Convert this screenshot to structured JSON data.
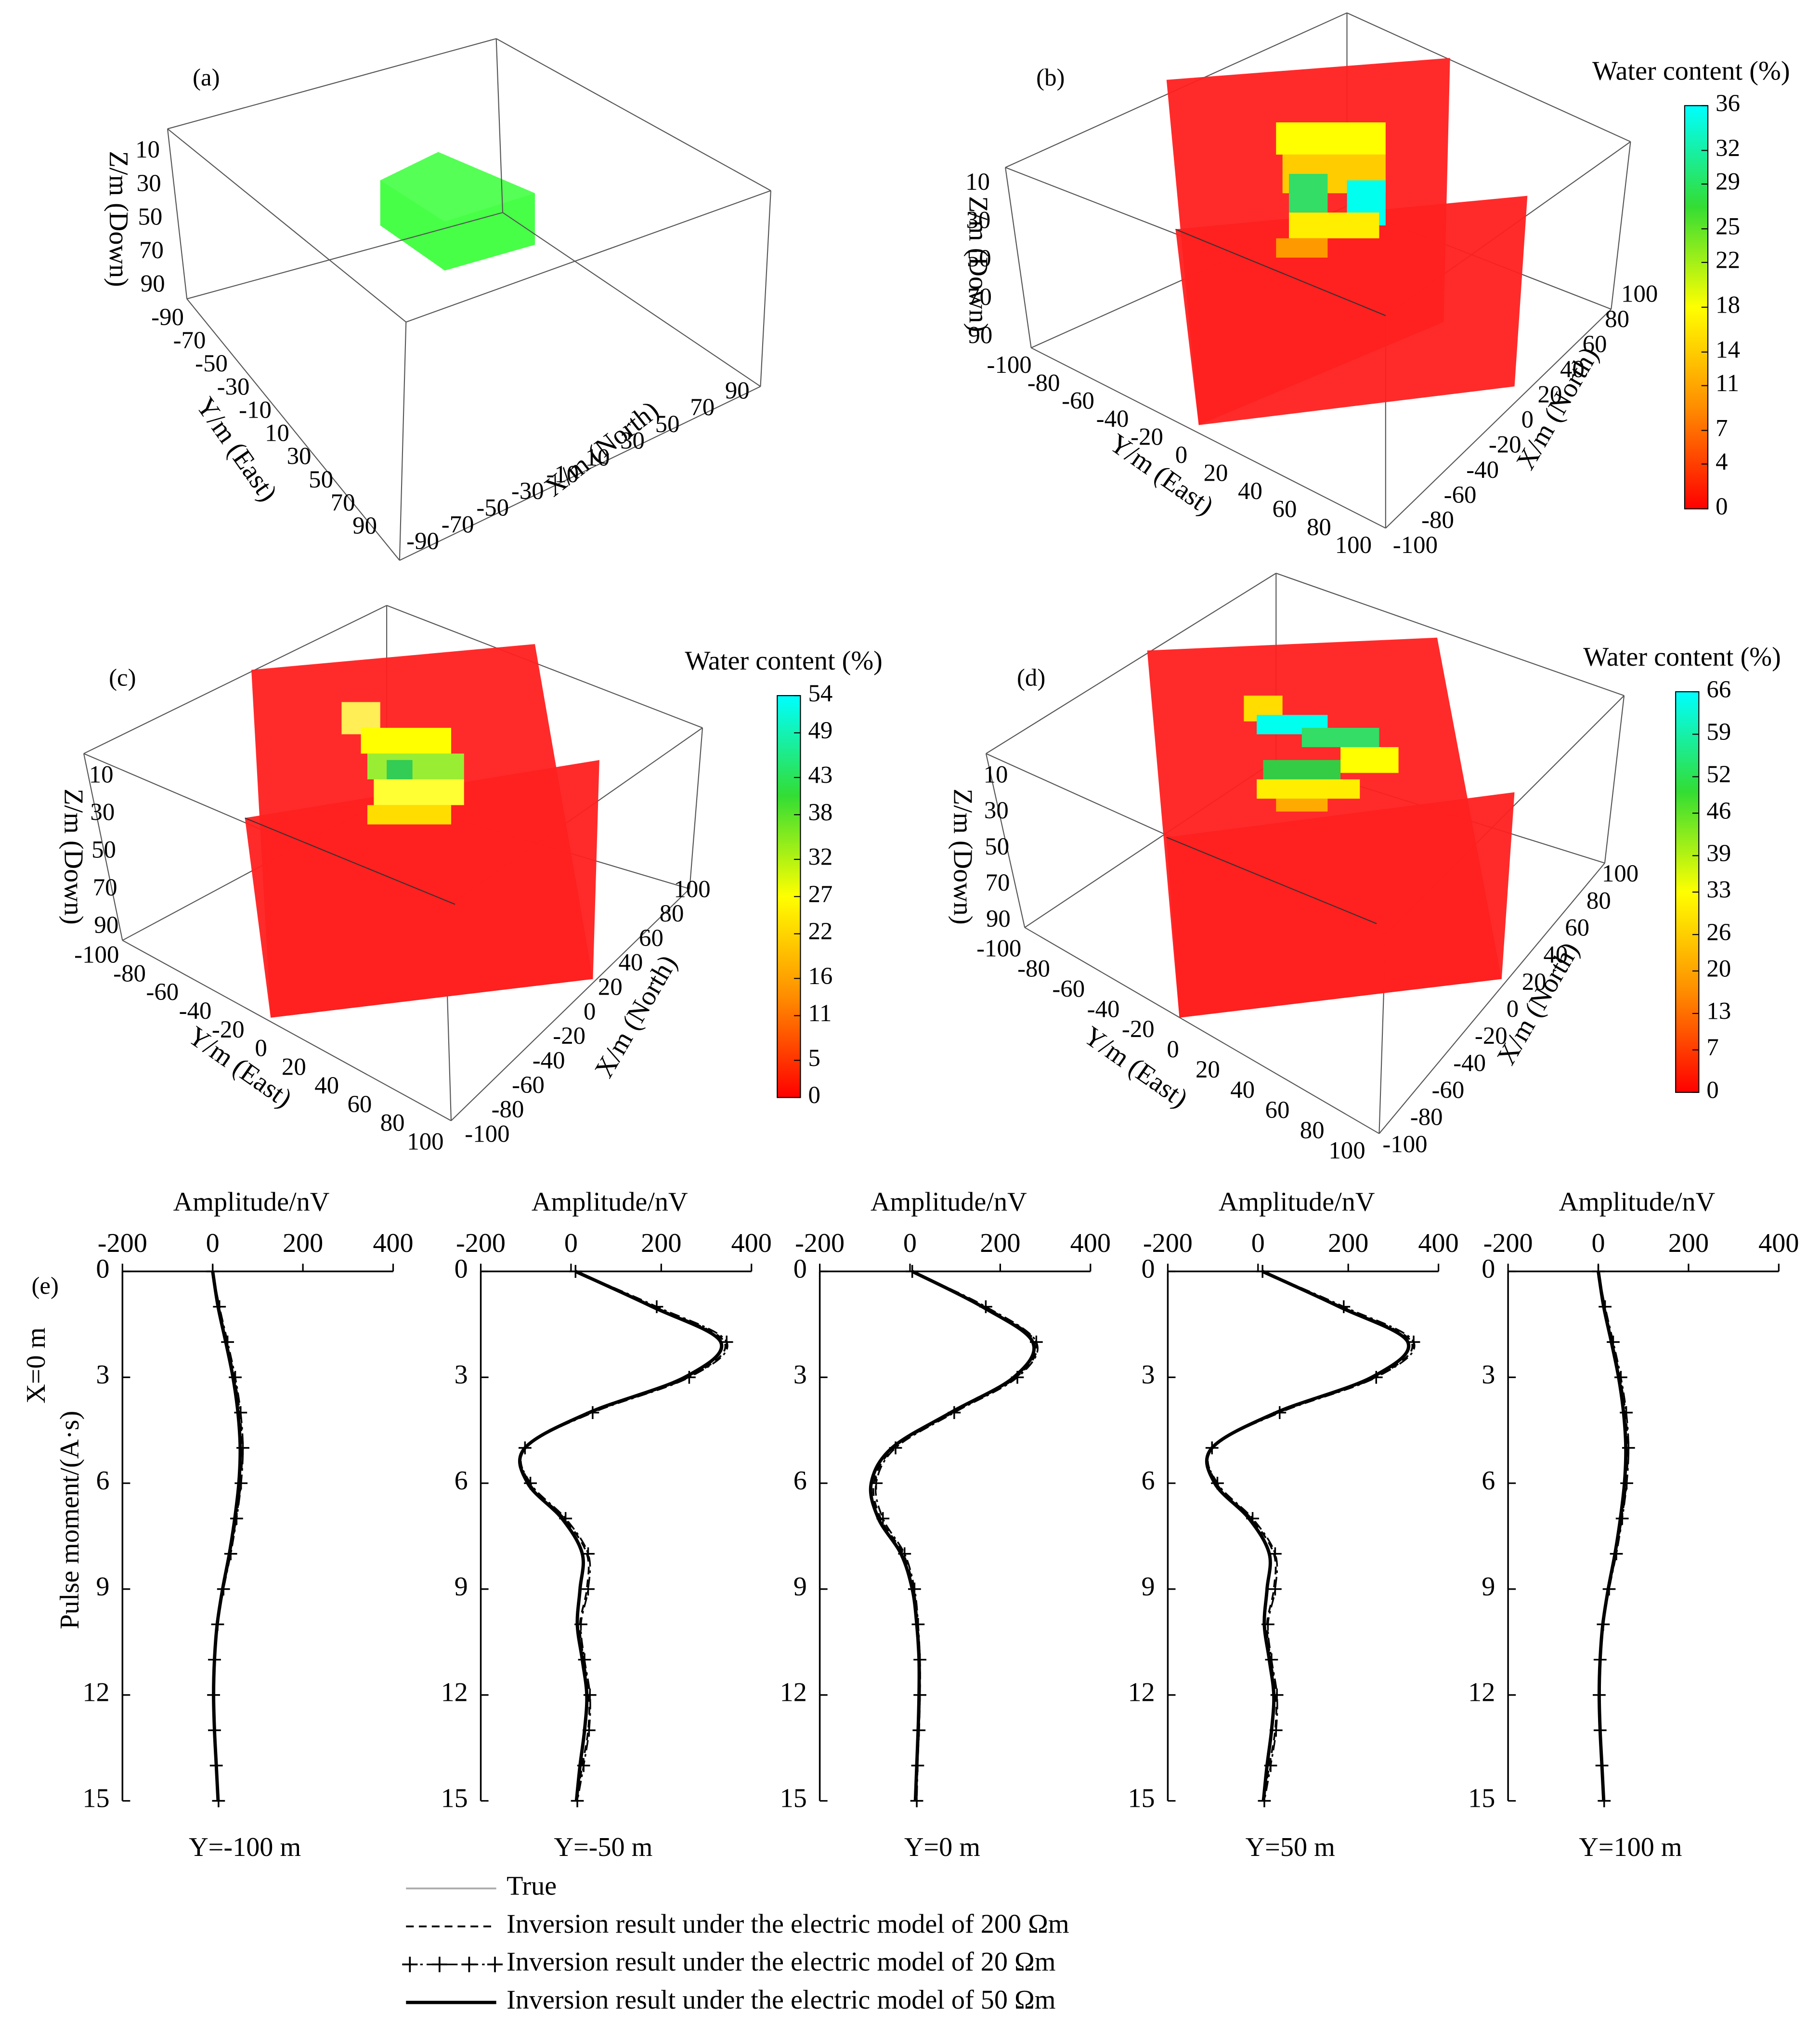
{
  "panels_3d": [
    {
      "label": "(a)",
      "z_title": "Z/m (Down)",
      "y_title": "Y/m (East)",
      "x_title": "X/m (North)",
      "zticks": [
        10,
        30,
        50,
        70,
        90
      ],
      "yticks": [
        -90,
        -70,
        -50,
        -30,
        -10,
        10,
        30,
        50,
        70,
        90
      ],
      "xticks": [
        -90,
        -70,
        -50,
        -30,
        -10,
        10,
        30,
        50,
        70,
        90
      ]
    },
    {
      "label": "(b)",
      "z_title": "Z/m (Down)",
      "y_title": "Y/m (East)",
      "x_title": "X/m (North)",
      "zticks": [
        10,
        30,
        50,
        70,
        90
      ],
      "yticks": [
        -100,
        -80,
        -60,
        -40,
        -20,
        0,
        20,
        40,
        60,
        80,
        100
      ],
      "xticks": [
        -100,
        -80,
        -60,
        -40,
        -20,
        0,
        20,
        40,
        60,
        80,
        100
      ],
      "colorbar": {
        "title": "Water content (%)",
        "lim": [
          0,
          36
        ],
        "ticks": [
          0,
          4,
          7,
          11,
          14,
          18,
          22,
          25,
          29,
          32,
          36
        ],
        "colors": [
          "#ff0000",
          "#ff8c00",
          "#ffff00",
          "#33dd33",
          "#00ffff"
        ]
      }
    },
    {
      "label": "(c)",
      "z_title": "Z/m (Down)",
      "y_title": "Y/m (East)",
      "x_title": "X/m (North)",
      "zticks": [
        10,
        30,
        50,
        70,
        90
      ],
      "yticks": [
        -100,
        -80,
        -60,
        -40,
        -20,
        0,
        20,
        40,
        60,
        80,
        100
      ],
      "xticks": [
        -100,
        -80,
        -60,
        -40,
        -20,
        0,
        20,
        40,
        60,
        80,
        100
      ],
      "colorbar": {
        "title": "Water content (%)",
        "lim": [
          0,
          54
        ],
        "ticks": [
          0,
          5,
          11,
          16,
          22,
          27,
          32,
          38,
          43,
          49,
          54
        ],
        "colors": [
          "#ff0000",
          "#ff8c00",
          "#ffff00",
          "#33dd33",
          "#00ffff"
        ]
      }
    },
    {
      "label": "(d)",
      "z_title": "Z/m (Down)",
      "y_title": "Y/m (East)",
      "x_title": "X/m (North)",
      "zticks": [
        10,
        30,
        50,
        70,
        90
      ],
      "yticks": [
        -100,
        -80,
        -60,
        -40,
        -20,
        0,
        20,
        40,
        60,
        80,
        100
      ],
      "xticks": [
        -100,
        -80,
        -60,
        -40,
        -20,
        0,
        20,
        40,
        60,
        80,
        100
      ],
      "colorbar": {
        "title": "Water content (%)",
        "lim": [
          0,
          66
        ],
        "ticks": [
          0,
          7,
          13,
          20,
          26,
          33,
          39,
          46,
          52,
          59,
          66
        ],
        "colors": [
          "#ff0000",
          "#ff8c00",
          "#ffff00",
          "#33dd33",
          "#00ffff"
        ]
      }
    }
  ],
  "chart_data": [
    {
      "type": "line",
      "panel_label": "(e)",
      "annotation": "X=0 m",
      "y_label": "Pulse moment/(A·s)",
      "x_label": "Amplitude/nV",
      "caption": "Y=-100 m",
      "x": [
        0,
        1,
        2,
        3,
        4,
        5,
        6,
        7,
        8,
        9,
        10,
        11,
        12,
        13,
        14,
        15
      ],
      "xlim": [
        0,
        15
      ],
      "xticks": [
        0,
        3,
        6,
        9,
        12,
        15
      ],
      "ylim": [
        -200,
        400
      ],
      "yticks": [
        -200,
        0,
        200,
        400
      ],
      "series": [
        {
          "name": "True",
          "color": "#aaaaaa",
          "style": "solid",
          "values": [
            0,
            12,
            28,
            44,
            55,
            60,
            57,
            48,
            36,
            22,
            10,
            4,
            2,
            4,
            8,
            12
          ]
        },
        {
          "name": "Inversion result under the electric model of  200 Ωm",
          "color": "#000000",
          "style": "dashed",
          "values": [
            0,
            14,
            31,
            48,
            60,
            65,
            62,
            52,
            39,
            24,
            11,
            4,
            2,
            4,
            8,
            12
          ]
        },
        {
          "name": "Inversion result under the electric model of  20 Ωm",
          "color": "#000000",
          "style": "dashdot",
          "marker": "+",
          "values": [
            0,
            15,
            33,
            50,
            62,
            67,
            63,
            53,
            40,
            24,
            11,
            4,
            2,
            4,
            8,
            13
          ]
        },
        {
          "name": "Inversion result under the electric model of  50 Ωm",
          "color": "#000000",
          "style": "thick",
          "values": [
            0,
            12,
            29,
            45,
            56,
            61,
            58,
            49,
            37,
            22,
            10,
            4,
            2,
            4,
            8,
            12
          ]
        }
      ]
    },
    {
      "type": "line",
      "x_label": "Amplitude/nV",
      "caption": "Y=-50 m",
      "x": [
        0,
        1,
        2,
        3,
        4,
        5,
        6,
        7,
        8,
        9,
        10,
        11,
        12,
        13,
        14,
        15
      ],
      "xlim": [
        0,
        15
      ],
      "xticks": [
        0,
        3,
        6,
        9,
        12,
        15
      ],
      "ylim": [
        -200,
        400
      ],
      "yticks": [
        -200,
        0,
        200,
        400
      ],
      "series": [
        {
          "color": "#aaaaaa",
          "style": "solid",
          "values": [
            10,
            180,
            330,
            250,
            40,
            -100,
            -95,
            -20,
            25,
            20,
            15,
            25,
            35,
            30,
            20,
            12
          ]
        },
        {
          "color": "#000000",
          "style": "dashed",
          "values": [
            10,
            185,
            340,
            260,
            45,
            -100,
            -92,
            -15,
            35,
            35,
            20,
            28,
            40,
            38,
            25,
            12
          ]
        },
        {
          "color": "#000000",
          "style": "dashdot",
          "marker": "+",
          "values": [
            10,
            190,
            345,
            262,
            48,
            -102,
            -90,
            -12,
            38,
            38,
            22,
            30,
            42,
            40,
            28,
            14
          ]
        },
        {
          "color": "#000000",
          "style": "thick",
          "values": [
            10,
            180,
            332,
            252,
            40,
            -102,
            -96,
            -20,
            25,
            20,
            14,
            25,
            35,
            30,
            20,
            12
          ]
        }
      ]
    },
    {
      "type": "line",
      "x_label": "Amplitude/nV",
      "caption": "Y=0 m",
      "x": [
        0,
        1,
        2,
        3,
        4,
        5,
        6,
        7,
        8,
        9,
        10,
        11,
        12,
        13,
        14,
        15
      ],
      "xlim": [
        0,
        15
      ],
      "xticks": [
        0,
        3,
        6,
        9,
        12,
        15
      ],
      "ylim": [
        -200,
        400
      ],
      "yticks": [
        -200,
        0,
        200,
        400
      ],
      "series": [
        {
          "color": "#aaaaaa",
          "style": "solid",
          "values": [
            5,
            160,
            270,
            230,
            90,
            -40,
            -85,
            -70,
            -20,
            5,
            15,
            20,
            20,
            18,
            15,
            12
          ]
        },
        {
          "color": "#000000",
          "style": "dashed",
          "values": [
            5,
            165,
            278,
            235,
            95,
            -35,
            -80,
            -65,
            -15,
            8,
            17,
            22,
            22,
            20,
            16,
            14
          ]
        },
        {
          "color": "#000000",
          "style": "dashdot",
          "marker": "+",
          "values": [
            5,
            168,
            280,
            238,
            98,
            -32,
            -75,
            -60,
            -12,
            10,
            18,
            22,
            22,
            20,
            17,
            15
          ]
        },
        {
          "color": "#000000",
          "style": "thick",
          "values": [
            5,
            160,
            272,
            230,
            90,
            -40,
            -86,
            -70,
            -20,
            5,
            15,
            20,
            20,
            18,
            15,
            12
          ]
        }
      ]
    },
    {
      "type": "line",
      "x_label": "Amplitude/nV",
      "caption": "Y=50 m",
      "x": [
        0,
        1,
        2,
        3,
        4,
        5,
        6,
        7,
        8,
        9,
        10,
        11,
        12,
        13,
        14,
        15
      ],
      "xlim": [
        0,
        15
      ],
      "xticks": [
        0,
        3,
        6,
        9,
        12,
        15
      ],
      "ylim": [
        -200,
        400
      ],
      "yticks": [
        -200,
        0,
        200,
        400
      ],
      "series": [
        {
          "color": "#aaaaaa",
          "style": "solid",
          "values": [
            10,
            180,
            330,
            250,
            40,
            -100,
            -95,
            -20,
            25,
            20,
            15,
            25,
            35,
            30,
            20,
            12
          ]
        },
        {
          "color": "#000000",
          "style": "dashed",
          "values": [
            10,
            185,
            340,
            260,
            45,
            -100,
            -92,
            -15,
            35,
            35,
            20,
            28,
            40,
            38,
            25,
            12
          ]
        },
        {
          "color": "#000000",
          "style": "dashdot",
          "marker": "+",
          "values": [
            10,
            190,
            345,
            262,
            48,
            -102,
            -90,
            -12,
            38,
            38,
            22,
            30,
            42,
            40,
            28,
            14
          ]
        },
        {
          "color": "#000000",
          "style": "thick",
          "values": [
            10,
            180,
            332,
            252,
            40,
            -102,
            -96,
            -20,
            25,
            20,
            14,
            25,
            35,
            30,
            20,
            12
          ]
        }
      ]
    },
    {
      "type": "line",
      "x_label": "Amplitude/nV",
      "caption": "Y=100 m",
      "x": [
        0,
        1,
        2,
        3,
        4,
        5,
        6,
        7,
        8,
        9,
        10,
        11,
        12,
        13,
        14,
        15
      ],
      "xlim": [
        0,
        15
      ],
      "xticks": [
        0,
        3,
        6,
        9,
        12,
        15
      ],
      "ylim": [
        -200,
        400
      ],
      "yticks": [
        -200,
        0,
        200,
        400
      ],
      "series": [
        {
          "color": "#aaaaaa",
          "style": "solid",
          "values": [
            0,
            12,
            28,
            44,
            55,
            60,
            57,
            48,
            36,
            22,
            10,
            4,
            2,
            4,
            8,
            12
          ]
        },
        {
          "color": "#000000",
          "style": "dashed",
          "values": [
            0,
            14,
            31,
            48,
            60,
            65,
            62,
            52,
            39,
            24,
            11,
            4,
            2,
            4,
            8,
            12
          ]
        },
        {
          "color": "#000000",
          "style": "dashdot",
          "marker": "+",
          "values": [
            0,
            15,
            33,
            50,
            62,
            67,
            63,
            53,
            40,
            24,
            11,
            4,
            2,
            4,
            8,
            13
          ]
        },
        {
          "color": "#000000",
          "style": "thick",
          "values": [
            0,
            12,
            29,
            45,
            56,
            61,
            58,
            49,
            37,
            22,
            10,
            4,
            2,
            4,
            8,
            12
          ]
        }
      ]
    }
  ]
}
